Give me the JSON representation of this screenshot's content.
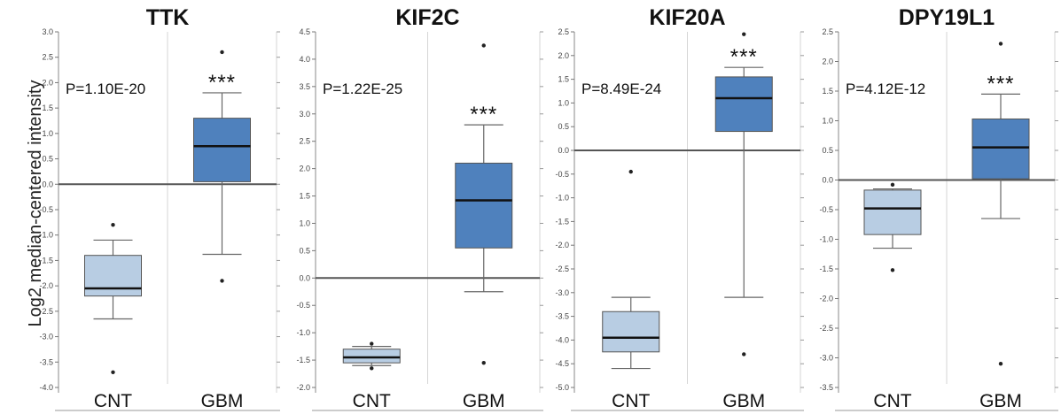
{
  "figure": {
    "ylabel": "Log2 median-centered intensity"
  },
  "chart_data": [
    {
      "type": "box",
      "title": "TTK",
      "p_value": "P=1.10E-20",
      "categories": [
        "CNT",
        "GBM"
      ],
      "significance": [
        "",
        "***"
      ],
      "ylim": [
        -4.0,
        3.0
      ],
      "yticks": [
        "3.0",
        "2.5",
        "2.0",
        "1.5",
        "1.0",
        "0.5",
        "0.0",
        "-0.5",
        "-1.0",
        "-1.5",
        "-2.0",
        "-2.5",
        "-3.0",
        "-3.5",
        "-4.0"
      ],
      "yticks_values": [
        3.0,
        2.5,
        2.0,
        1.5,
        1.0,
        0.5,
        0.0,
        -0.5,
        -1.0,
        -1.5,
        -2.0,
        -2.5,
        -3.0,
        -3.5,
        -4.0
      ],
      "boxes": [
        {
          "name": "CNT",
          "min": -2.65,
          "q1": -2.2,
          "median": -2.05,
          "q3": -1.4,
          "max": -1.1,
          "outliers": [
            -0.8,
            -3.7
          ]
        },
        {
          "name": "GBM",
          "min": -1.38,
          "q1": 0.05,
          "median": 0.75,
          "q3": 1.3,
          "max": 1.8,
          "outliers": [
            2.6,
            -1.9
          ]
        }
      ]
    },
    {
      "type": "box",
      "title": "KIF2C",
      "p_value": "P=1.22E-25",
      "categories": [
        "CNT",
        "GBM"
      ],
      "significance": [
        "",
        "***"
      ],
      "ylim": [
        -2.0,
        4.5
      ],
      "yticks": [
        "4.5",
        "4.0",
        "3.5",
        "3.0",
        "2.5",
        "2.0",
        "1.5",
        "1.0",
        "0.5",
        "0.0",
        "-0.5",
        "-1.0",
        "-1.5",
        "-2.0"
      ],
      "yticks_values": [
        4.5,
        4.0,
        3.5,
        3.0,
        2.5,
        2.0,
        1.5,
        1.0,
        0.5,
        0.0,
        -0.5,
        -1.0,
        -1.5,
        -2.0
      ],
      "boxes": [
        {
          "name": "CNT",
          "min": -1.6,
          "q1": -1.55,
          "median": -1.45,
          "q3": -1.3,
          "max": -1.25,
          "outliers": [
            -1.2,
            -1.65
          ]
        },
        {
          "name": "GBM",
          "min": -0.25,
          "q1": 0.55,
          "median": 1.42,
          "q3": 2.1,
          "max": 2.8,
          "outliers": [
            4.25,
            -1.55
          ]
        }
      ]
    },
    {
      "type": "box",
      "title": "KIF20A",
      "p_value": "P=8.49E-24",
      "categories": [
        "CNT",
        "GBM"
      ],
      "significance": [
        "",
        "***"
      ],
      "ylim": [
        -5.0,
        2.5
      ],
      "yticks": [
        "2.5",
        "2.0",
        "1.5",
        "1.0",
        "0.5",
        "0.0",
        "-0.5",
        "-1.0",
        "-1.5",
        "-2.0",
        "-2.5",
        "-3.0",
        "-3.5",
        "-4.0",
        "-4.5",
        "-5.0"
      ],
      "yticks_values": [
        2.5,
        2.0,
        1.5,
        1.0,
        0.5,
        0.0,
        -0.5,
        -1.0,
        -1.5,
        -2.0,
        -2.5,
        -3.0,
        -3.5,
        -4.0,
        -4.5,
        -5.0
      ],
      "boxes": [
        {
          "name": "CNT",
          "min": -4.6,
          "q1": -4.25,
          "median": -3.95,
          "q3": -3.4,
          "max": -3.1,
          "outliers": [
            -0.45
          ]
        },
        {
          "name": "GBM",
          "min": -3.1,
          "q1": 0.4,
          "median": 1.1,
          "q3": 1.55,
          "max": 1.75,
          "outliers": [
            2.45,
            -4.3
          ]
        }
      ]
    },
    {
      "type": "box",
      "title": "DPY19L1",
      "p_value": "P=4.12E-12",
      "categories": [
        "CNT",
        "GBM"
      ],
      "significance": [
        "",
        "***"
      ],
      "ylim": [
        -3.5,
        2.5
      ],
      "yticks": [
        "2.5",
        "2.0",
        "1.5",
        "1.0",
        "0.5",
        "0.0",
        "-0.5",
        "-1.0",
        "-1.5",
        "-2.0",
        "-2.5",
        "-3.0",
        "-3.5"
      ],
      "yticks_values": [
        2.5,
        2.0,
        1.5,
        1.0,
        0.5,
        0.0,
        -0.5,
        -1.0,
        -1.5,
        -2.0,
        -2.5,
        -3.0,
        -3.5
      ],
      "boxes": [
        {
          "name": "CNT",
          "min": -1.15,
          "q1": -0.92,
          "median": -0.48,
          "q3": -0.17,
          "max": -0.15,
          "outliers": [
            -0.08,
            -1.52
          ]
        },
        {
          "name": "GBM",
          "min": -0.65,
          "q1": 0.02,
          "median": 0.55,
          "q3": 1.03,
          "max": 1.45,
          "outliers": [
            2.3,
            -3.1
          ]
        }
      ]
    }
  ],
  "colors": {
    "cnt_fill": "#b8cde3",
    "gbm_fill": "#4f81bd",
    "axis": "#555555",
    "frame": "#d6d6d6"
  }
}
